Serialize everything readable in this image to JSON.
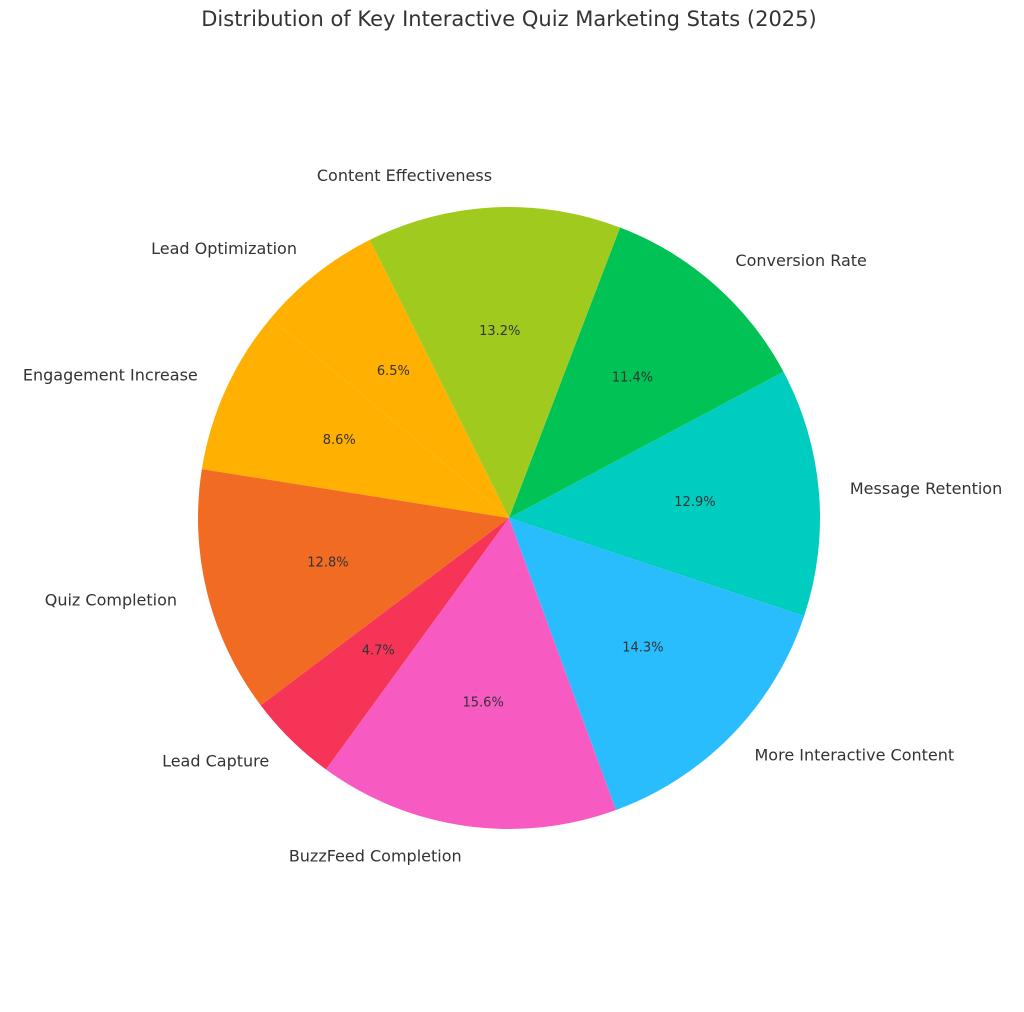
{
  "chart_data": {
    "type": "pie",
    "title": "Distribution of Key Interactive Quiz Marketing Stats (2025)",
    "categories": [
      "Engagement Increase",
      "Quiz Completion",
      "Lead Capture",
      "BuzzFeed Completion",
      "More Interactive Content",
      "Message Retention",
      "Conversion Rate",
      "Content Effectiveness",
      "Lead Optimization"
    ],
    "values": [
      8.6,
      12.8,
      4.7,
      15.6,
      14.3,
      12.9,
      11.4,
      13.2,
      6.5
    ],
    "value_labels": [
      "8.6%",
      "12.8%",
      "4.7%",
      "15.6%",
      "14.3%",
      "12.9%",
      "11.4%",
      "13.2%",
      "6.5%"
    ],
    "colors": [
      "#ffb000",
      "#f26b22",
      "#f53458",
      "#f75bc2",
      "#2abdfd",
      "#00cdc0",
      "#00c255",
      "#a0cb1e",
      "#ffb000"
    ]
  }
}
